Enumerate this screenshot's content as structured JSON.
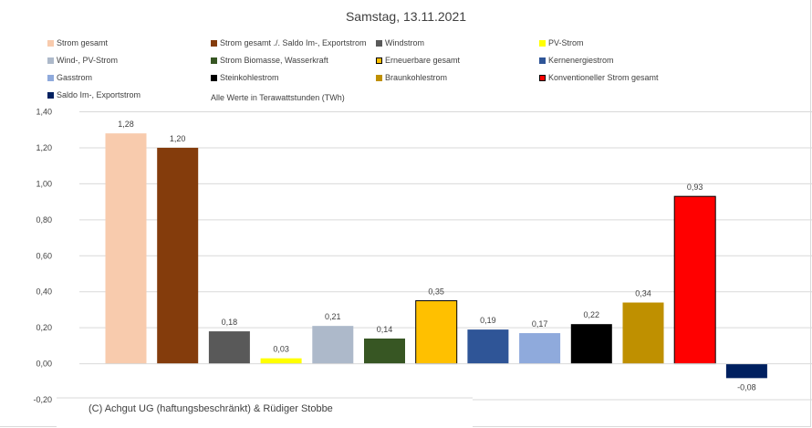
{
  "chart_data": {
    "type": "bar",
    "title": "Samstag, 13.11.2021",
    "subtitle": "Alle Werte in Terawattstunden (TWh)",
    "ylim": [
      -0.2,
      1.4
    ],
    "yticks": [
      "1,40",
      "1,20",
      "1,00",
      "0,80",
      "0,60",
      "0,40",
      "0,20",
      "0,00",
      "-0,20"
    ],
    "ytick_values": [
      1.4,
      1.2,
      1.0,
      0.8,
      0.6,
      0.4,
      0.2,
      0.0,
      -0.2
    ],
    "grid": true,
    "legend_position": "top",
    "series": [
      {
        "name": "Strom gesamt",
        "value": 1.28,
        "label": "1,28",
        "color": "#f8cbad"
      },
      {
        "name": "Strom gesamt ./. Saldo Im-, Exportstrom",
        "value": 1.2,
        "label": "1,20",
        "color": "#843c0c"
      },
      {
        "name": "Windstrom",
        "value": 0.18,
        "label": "0,18",
        "color": "#595959"
      },
      {
        "name": "PV-Strom",
        "value": 0.03,
        "label": "0,03",
        "color": "#ffff00"
      },
      {
        "name": "Wind-, PV-Strom",
        "value": 0.21,
        "label": "0,21",
        "color": "#adb9ca"
      },
      {
        "name": "Strom Biomasse, Wasserkraft",
        "value": 0.14,
        "label": "0,14",
        "color": "#375623"
      },
      {
        "name": "Erneuerbare gesamt",
        "value": 0.35,
        "label": "0,35",
        "color": "#ffc000",
        "border": "#000000"
      },
      {
        "name": "Kernenergiestrom",
        "value": 0.19,
        "label": "0,19",
        "color": "#2f5597"
      },
      {
        "name": "Gasstrom",
        "value": 0.17,
        "label": "0,17",
        "color": "#8faadc"
      },
      {
        "name": "Steinkohlestrom",
        "value": 0.22,
        "label": "0,22",
        "color": "#000000"
      },
      {
        "name": "Braunkohlestrom",
        "value": 0.34,
        "label": "0,34",
        "color": "#bf9000"
      },
      {
        "name": "Konventioneller Strom gesamt",
        "value": 0.93,
        "label": "0,93",
        "color": "#ff0000",
        "border": "#000000"
      },
      {
        "name": "Saldo Im-, Exportstrom",
        "value": -0.08,
        "label": "-0,08",
        "color": "#002060"
      }
    ]
  },
  "footer": {
    "copyright": "(C) Achgut UG (haftungsbeschränkt) & Rüdiger Stobbe"
  }
}
